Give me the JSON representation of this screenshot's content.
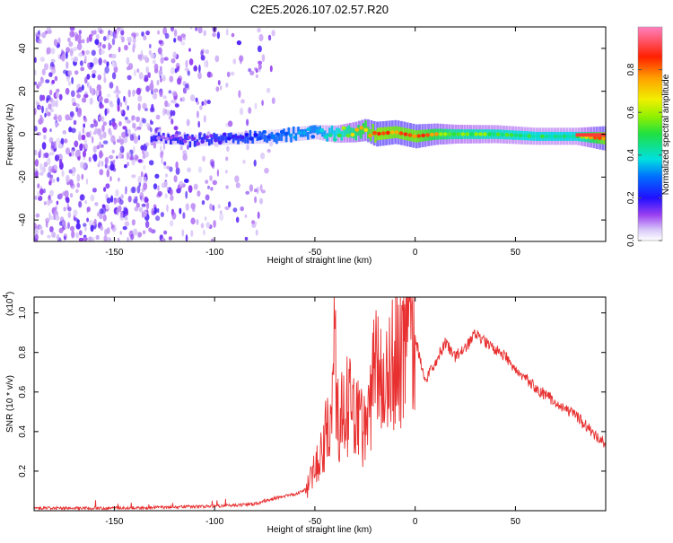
{
  "title": "C2E5.2026.107.02.57.R20",
  "chart_data": [
    {
      "type": "heatmap",
      "title": "C2E5.2026.107.02.57.R20",
      "xlabel": "Height of straight line (km)",
      "ylabel": "Frequency (Hz)",
      "xlim": [
        -190,
        95
      ],
      "ylim": [
        -50,
        50
      ],
      "x_ticks": [
        -150,
        -100,
        -50,
        0,
        50
      ],
      "y_ticks": [
        -40,
        -20,
        0,
        20,
        40
      ],
      "colorbar": {
        "label": "Normalized spectral amplitude",
        "range": [
          0,
          1
        ],
        "ticks": [
          0.0,
          0.2,
          0.4,
          0.6,
          0.8
        ]
      },
      "ridge": {
        "x": [
          -130,
          -110,
          -90,
          -70,
          -50,
          -40,
          -30,
          -25,
          -20,
          -10,
          0,
          10,
          20,
          40,
          60,
          80,
          95
        ],
        "center_hz": [
          -2,
          -3,
          -2,
          -1,
          1,
          0,
          1,
          2,
          0,
          1,
          -1,
          0,
          0,
          0,
          -1,
          -1,
          -2
        ],
        "amplitude": [
          0.1,
          0.15,
          0.2,
          0.3,
          0.35,
          0.5,
          0.7,
          0.8,
          0.95,
          0.9,
          0.9,
          0.75,
          0.6,
          0.55,
          0.5,
          0.5,
          0.95
        ]
      },
      "noise_region_x": [
        -190,
        -80
      ]
    },
    {
      "type": "line",
      "title": "",
      "xlabel": "Height of straight line (km)",
      "ylabel": "SNR (10 * v/v)",
      "y_multiplier": "(x10",
      "y_multiplier_exp": "4",
      "y_multiplier_close": ")",
      "xlim": [
        -190,
        95
      ],
      "ylim": [
        0,
        1.08
      ],
      "x_ticks": [
        -150,
        -100,
        -50,
        0,
        50
      ],
      "y_ticks": [
        0.2,
        0.4,
        0.6,
        0.8,
        1.0
      ],
      "series": [
        {
          "name": "SNR",
          "color": "#e83030",
          "x": [
            -190,
            -150,
            -120,
            -100,
            -80,
            -70,
            -60,
            -55,
            -50,
            -45,
            -42,
            -40,
            -38,
            -35,
            -30,
            -25,
            -22,
            -20,
            -15,
            -10,
            -5,
            -2,
            0,
            5,
            10,
            15,
            20,
            25,
            30,
            35,
            40,
            45,
            50,
            60,
            70,
            80,
            90,
            95
          ],
          "y": [
            0.01,
            0.01,
            0.015,
            0.02,
            0.03,
            0.06,
            0.08,
            0.1,
            0.25,
            0.4,
            0.5,
            0.92,
            0.45,
            0.6,
            0.55,
            0.42,
            0.6,
            0.78,
            0.72,
            0.85,
            0.9,
            1.05,
            0.88,
            0.65,
            0.75,
            0.85,
            0.78,
            0.82,
            0.9,
            0.85,
            0.82,
            0.78,
            0.72,
            0.62,
            0.55,
            0.48,
            0.38,
            0.34
          ]
        }
      ]
    }
  ]
}
